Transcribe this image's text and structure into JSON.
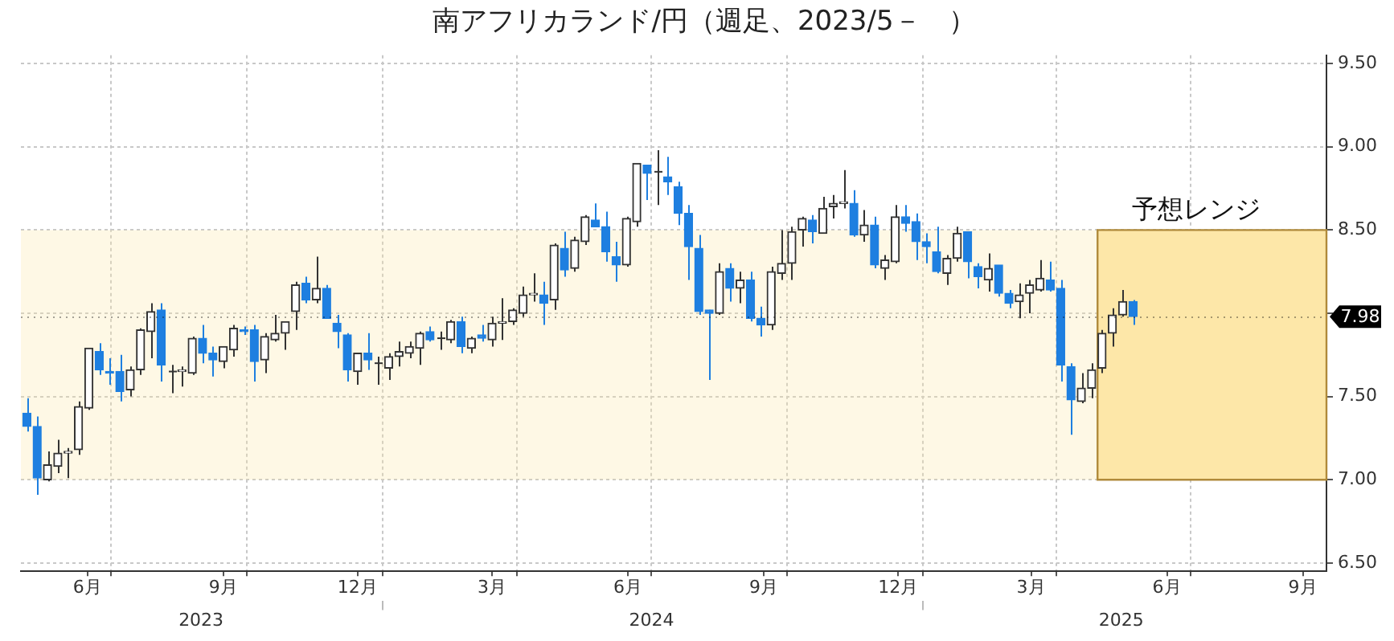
{
  "chart_data": {
    "type": "candlestick",
    "title": "南アフリカランド/円（週足、2023/5－　）",
    "x": [
      "2023-05-05",
      "2023-05-12",
      "2023-05-19",
      "2023-05-26",
      "2023-06-02",
      "2023-06-09",
      "2023-06-16",
      "2023-06-23",
      "2023-06-30",
      "2023-07-07",
      "2023-07-14",
      "2023-07-21",
      "2023-07-28",
      "2023-08-04",
      "2023-08-11",
      "2023-08-18",
      "2023-08-25",
      "2023-09-01",
      "2023-09-08",
      "2023-09-15",
      "2023-09-22",
      "2023-09-29",
      "2023-10-06",
      "2023-10-13",
      "2023-10-20",
      "2023-10-27",
      "2023-11-03",
      "2023-11-10",
      "2023-11-17",
      "2023-11-24",
      "2023-12-01",
      "2023-12-08",
      "2023-12-15",
      "2023-12-22",
      "2023-12-29",
      "2024-01-05",
      "2024-01-12",
      "2024-01-19",
      "2024-01-26",
      "2024-02-02",
      "2024-02-09",
      "2024-02-16",
      "2024-02-23",
      "2024-03-01",
      "2024-03-08",
      "2024-03-15",
      "2024-03-22",
      "2024-03-29",
      "2024-04-05",
      "2024-04-12",
      "2024-04-19",
      "2024-04-26",
      "2024-05-03",
      "2024-05-10",
      "2024-05-17",
      "2024-05-24",
      "2024-05-31",
      "2024-06-07",
      "2024-06-14",
      "2024-06-21",
      "2024-06-28",
      "2024-07-05",
      "2024-07-12",
      "2024-07-19",
      "2024-07-26",
      "2024-08-02",
      "2024-08-09",
      "2024-08-16",
      "2024-08-23",
      "2024-08-30",
      "2024-09-06",
      "2024-09-13",
      "2024-09-20",
      "2024-09-27",
      "2024-10-04",
      "2024-10-11",
      "2024-10-18",
      "2024-10-25",
      "2024-11-01",
      "2024-11-08",
      "2024-11-15",
      "2024-11-22",
      "2024-11-29",
      "2024-12-06",
      "2024-12-13",
      "2024-12-20",
      "2024-12-27",
      "2025-01-03",
      "2025-01-10",
      "2025-01-17",
      "2025-01-24",
      "2025-01-31",
      "2025-02-07",
      "2025-02-14",
      "2025-02-21",
      "2025-02-28",
      "2025-03-07",
      "2025-03-14",
      "2025-03-21",
      "2025-03-28",
      "2025-04-04",
      "2025-04-11",
      "2025-04-18",
      "2025-04-25",
      "2025-05-02",
      "2025-05-09",
      "2025-05-16",
      "2025-05-23"
    ],
    "ohlc": [
      [
        7.4,
        7.49,
        7.29,
        7.32
      ],
      [
        7.32,
        7.38,
        6.91,
        7.01
      ],
      [
        7.0,
        7.17,
        6.99,
        7.09
      ],
      [
        7.08,
        7.24,
        7.04,
        7.16
      ],
      [
        7.16,
        7.19,
        7.01,
        7.17
      ],
      [
        7.18,
        7.47,
        7.15,
        7.44
      ],
      [
        7.43,
        7.79,
        7.42,
        7.79
      ],
      [
        7.77,
        7.82,
        7.63,
        7.66
      ],
      [
        7.65,
        7.73,
        7.57,
        7.64
      ],
      [
        7.65,
        7.75,
        7.47,
        7.53
      ],
      [
        7.54,
        7.68,
        7.5,
        7.66
      ],
      [
        7.66,
        7.91,
        7.63,
        7.9
      ],
      [
        7.89,
        8.06,
        7.73,
        8.01
      ],
      [
        8.02,
        8.06,
        7.59,
        7.69
      ],
      [
        7.65,
        7.69,
        7.52,
        7.65
      ],
      [
        7.65,
        7.68,
        7.56,
        7.66
      ],
      [
        7.64,
        7.86,
        7.63,
        7.85
      ],
      [
        7.85,
        7.93,
        7.7,
        7.76
      ],
      [
        7.76,
        7.8,
        7.62,
        7.72
      ],
      [
        7.71,
        7.8,
        7.67,
        7.8
      ],
      [
        7.78,
        7.93,
        7.74,
        7.91
      ],
      [
        7.9,
        7.92,
        7.87,
        7.89
      ],
      [
        7.9,
        7.93,
        7.59,
        7.71
      ],
      [
        7.72,
        7.88,
        7.64,
        7.86
      ],
      [
        7.84,
        7.99,
        7.83,
        7.88
      ],
      [
        7.88,
        7.95,
        7.78,
        7.95
      ],
      [
        8.01,
        8.19,
        7.9,
        8.17
      ],
      [
        8.18,
        8.22,
        8.06,
        8.08
      ],
      [
        8.08,
        8.34,
        8.06,
        8.15
      ],
      [
        8.15,
        8.17,
        7.97,
        7.97
      ],
      [
        7.94,
        7.99,
        7.79,
        7.89
      ],
      [
        7.87,
        7.88,
        7.59,
        7.66
      ],
      [
        7.65,
        7.76,
        7.57,
        7.76
      ],
      [
        7.76,
        7.88,
        7.66,
        7.72
      ],
      [
        7.7,
        7.74,
        7.57,
        7.7
      ],
      [
        7.67,
        7.76,
        7.6,
        7.74
      ],
      [
        7.74,
        7.83,
        7.68,
        7.77
      ],
      [
        7.76,
        7.83,
        7.73,
        7.8
      ],
      [
        7.79,
        7.89,
        7.69,
        7.88
      ],
      [
        7.89,
        7.92,
        7.83,
        7.84
      ],
      [
        7.85,
        7.89,
        7.78,
        7.85
      ],
      [
        7.84,
        7.96,
        7.82,
        7.95
      ],
      [
        7.95,
        7.98,
        7.76,
        7.8
      ],
      [
        7.79,
        7.86,
        7.76,
        7.85
      ],
      [
        7.87,
        7.93,
        7.83,
        7.85
      ],
      [
        7.84,
        7.98,
        7.8,
        7.94
      ],
      [
        7.94,
        8.09,
        7.84,
        7.95
      ],
      [
        7.95,
        8.03,
        7.93,
        8.02
      ],
      [
        8.0,
        8.16,
        7.98,
        8.11
      ],
      [
        8.11,
        8.24,
        8.07,
        8.12
      ],
      [
        8.11,
        8.19,
        7.93,
        8.06
      ],
      [
        8.08,
        8.42,
        8.02,
        8.41
      ],
      [
        8.39,
        8.49,
        8.22,
        8.26
      ],
      [
        8.27,
        8.46,
        8.25,
        8.44
      ],
      [
        8.43,
        8.59,
        8.41,
        8.58
      ],
      [
        8.56,
        8.66,
        8.52,
        8.52
      ],
      [
        8.52,
        8.61,
        8.31,
        8.37
      ],
      [
        8.34,
        8.43,
        8.19,
        8.29
      ],
      [
        8.29,
        8.58,
        8.28,
        8.57
      ],
      [
        8.55,
        8.9,
        8.52,
        8.9
      ],
      [
        8.89,
        8.89,
        8.68,
        8.84
      ],
      [
        8.85,
        8.98,
        8.65,
        8.85
      ],
      [
        8.82,
        8.94,
        8.71,
        8.79
      ],
      [
        8.76,
        8.79,
        8.53,
        8.6
      ],
      [
        8.6,
        8.65,
        8.2,
        8.4
      ],
      [
        8.39,
        8.47,
        7.99,
        8.01
      ],
      [
        8.02,
        8.02,
        7.6,
        8.0
      ],
      [
        8.0,
        8.3,
        7.99,
        8.25
      ],
      [
        8.27,
        8.3,
        8.07,
        8.15
      ],
      [
        8.15,
        8.25,
        8.06,
        8.2
      ],
      [
        8.2,
        8.25,
        7.95,
        7.97
      ],
      [
        7.97,
        8.04,
        7.86,
        7.93
      ],
      [
        7.93,
        8.28,
        7.9,
        8.25
      ],
      [
        8.24,
        8.5,
        8.2,
        8.3
      ],
      [
        8.3,
        8.52,
        8.2,
        8.49
      ],
      [
        8.5,
        8.58,
        8.4,
        8.57
      ],
      [
        8.56,
        8.59,
        8.42,
        8.49
      ],
      [
        8.48,
        8.7,
        8.48,
        8.63
      ],
      [
        8.64,
        8.71,
        8.57,
        8.66
      ],
      [
        8.66,
        8.86,
        8.63,
        8.67
      ],
      [
        8.66,
        8.74,
        8.46,
        8.47
      ],
      [
        8.47,
        8.62,
        8.43,
        8.53
      ],
      [
        8.53,
        8.58,
        8.27,
        8.29
      ],
      [
        8.27,
        8.35,
        8.2,
        8.32
      ],
      [
        8.31,
        8.65,
        8.3,
        8.58
      ],
      [
        8.58,
        8.65,
        8.49,
        8.54
      ],
      [
        8.55,
        8.6,
        8.32,
        8.43
      ],
      [
        8.43,
        8.48,
        8.3,
        8.4
      ],
      [
        8.37,
        8.52,
        8.24,
        8.25
      ],
      [
        8.24,
        8.35,
        8.17,
        8.33
      ],
      [
        8.33,
        8.52,
        8.31,
        8.48
      ],
      [
        8.49,
        8.49,
        8.21,
        8.31
      ],
      [
        8.28,
        8.3,
        8.15,
        8.22
      ],
      [
        8.2,
        8.36,
        8.13,
        8.27
      ],
      [
        8.29,
        8.29,
        8.1,
        8.12
      ],
      [
        8.12,
        8.14,
        8.03,
        8.06
      ],
      [
        8.07,
        8.18,
        7.97,
        8.11
      ],
      [
        8.12,
        8.2,
        8.0,
        8.17
      ],
      [
        8.14,
        8.32,
        8.13,
        8.21
      ],
      [
        8.2,
        8.31,
        8.13,
        8.14
      ],
      [
        8.15,
        8.2,
        7.59,
        7.69
      ],
      [
        7.68,
        7.7,
        7.27,
        7.48
      ],
      [
        7.47,
        7.64,
        7.46,
        7.55
      ],
      [
        7.55,
        7.7,
        7.49,
        7.66
      ],
      [
        7.67,
        7.9,
        7.64,
        7.88
      ],
      [
        7.88,
        8.03,
        7.8,
        7.99
      ],
      [
        7.99,
        8.14,
        7.98,
        8.07
      ],
      [
        8.07,
        8.08,
        7.93,
        7.98
      ]
    ],
    "colors": [
      "#1e7fe0",
      "#1e7fe0",
      "#333333",
      "#333333",
      "#333333",
      "#333333",
      "#333333",
      "#1e7fe0",
      "#1e7fe0",
      "#1e7fe0",
      "#333333",
      "#333333",
      "#333333",
      "#1e7fe0",
      "#333333",
      "#333333",
      "#333333",
      "#1e7fe0",
      "#1e7fe0",
      "#333333",
      "#333333",
      "#1e7fe0",
      "#1e7fe0",
      "#333333",
      "#333333",
      "#333333",
      "#333333",
      "#1e7fe0",
      "#333333",
      "#1e7fe0",
      "#1e7fe0",
      "#1e7fe0",
      "#333333",
      "#1e7fe0",
      "#333333",
      "#333333",
      "#333333",
      "#333333",
      "#333333",
      "#1e7fe0",
      "#333333",
      "#333333",
      "#1e7fe0",
      "#333333",
      "#1e7fe0",
      "#333333",
      "#333333",
      "#333333",
      "#333333",
      "#333333",
      "#1e7fe0",
      "#333333",
      "#1e7fe0",
      "#333333",
      "#333333",
      "#1e7fe0",
      "#1e7fe0",
      "#1e7fe0",
      "#333333",
      "#333333",
      "#1e7fe0",
      "#333333",
      "#1e7fe0",
      "#1e7fe0",
      "#1e7fe0",
      "#1e7fe0",
      "#1e7fe0",
      "#333333",
      "#1e7fe0",
      "#333333",
      "#1e7fe0",
      "#1e7fe0",
      "#333333",
      "#333333",
      "#333333",
      "#333333",
      "#1e7fe0",
      "#333333",
      "#333333",
      "#333333",
      "#1e7fe0",
      "#333333",
      "#1e7fe0",
      "#333333",
      "#333333",
      "#1e7fe0",
      "#1e7fe0",
      "#1e7fe0",
      "#1e7fe0",
      "#333333",
      "#333333",
      "#1e7fe0",
      "#1e7fe0",
      "#333333",
      "#1e7fe0",
      "#1e7fe0",
      "#333333",
      "#333333",
      "#333333",
      "#1e7fe0",
      "#1e7fe0",
      "#1e7fe0",
      "#333333",
      "#333333",
      "#333333",
      "#333333",
      "#333333",
      "#1e7fe0"
    ],
    "xlim": [
      "2023-05-01",
      "2025-10-01"
    ],
    "xticks": [
      {
        "value": "2023-06-15",
        "label": "6月"
      },
      {
        "value": "2023-07-01",
        "label": null
      },
      {
        "value": "2023-09-15",
        "label": "9月"
      },
      {
        "value": "2023-10-01",
        "label": null
      },
      {
        "value": "2023-12-15",
        "label": "12月"
      },
      {
        "value": "2024-01-01",
        "label": null
      },
      {
        "value": "2024-03-15",
        "label": "3月"
      },
      {
        "value": "2024-04-01",
        "label": null
      },
      {
        "value": "2024-06-15",
        "label": "6月"
      },
      {
        "value": "2024-07-01",
        "label": null
      },
      {
        "value": "2024-09-15",
        "label": "9月"
      },
      {
        "value": "2024-10-01",
        "label": null
      },
      {
        "value": "2024-12-15",
        "label": "12月"
      },
      {
        "value": "2025-01-01",
        "label": null
      },
      {
        "value": "2025-03-15",
        "label": "3月"
      },
      {
        "value": "2025-04-01",
        "label": null
      },
      {
        "value": "2025-06-15",
        "label": "6月"
      },
      {
        "value": "2025-07-01",
        "label": null
      },
      {
        "value": "2025-09-15",
        "label": "9月"
      }
    ],
    "x2lim": [
      "2023-05-01",
      "2025-10-01"
    ],
    "x2ticks": [
      {
        "value": "2023-08-31",
        "label": "2023"
      },
      {
        "value": "2024-01-01",
        "label": null
      },
      {
        "value": "2024-07-01",
        "label": "2024"
      },
      {
        "value": "2025-01-01",
        "label": null
      },
      {
        "value": "2025-05-15",
        "label": "2025"
      }
    ],
    "ylim": [
      6.45,
      9.55
    ],
    "yticks": [
      {
        "value": 6.5,
        "label": "6.50"
      },
      {
        "value": 7,
        "label": "7.00"
      },
      {
        "value": 7.5,
        "label": "7.50"
      },
      {
        "value": 8,
        "label": null
      },
      {
        "value": 8.5,
        "label": "8.50"
      },
      {
        "value": 9,
        "label": "9.00"
      },
      {
        "value": 9.5,
        "label": "9.50"
      }
    ],
    "ref_lines": [
      {
        "axis": "y",
        "value": 7.98,
        "label": "7.98",
        "color": "#000000"
      }
    ],
    "bands": [
      {
        "axis": "x",
        "from": "2025-04-29",
        "to": "2025-10-01",
        "label": "予想レンジ",
        "color": "#fde7a8"
      },
      {
        "axis": "y",
        "from": 7,
        "to": 8.5,
        "color": "#fde7a8"
      }
    ],
    "grid": true,
    "legend": false
  }
}
